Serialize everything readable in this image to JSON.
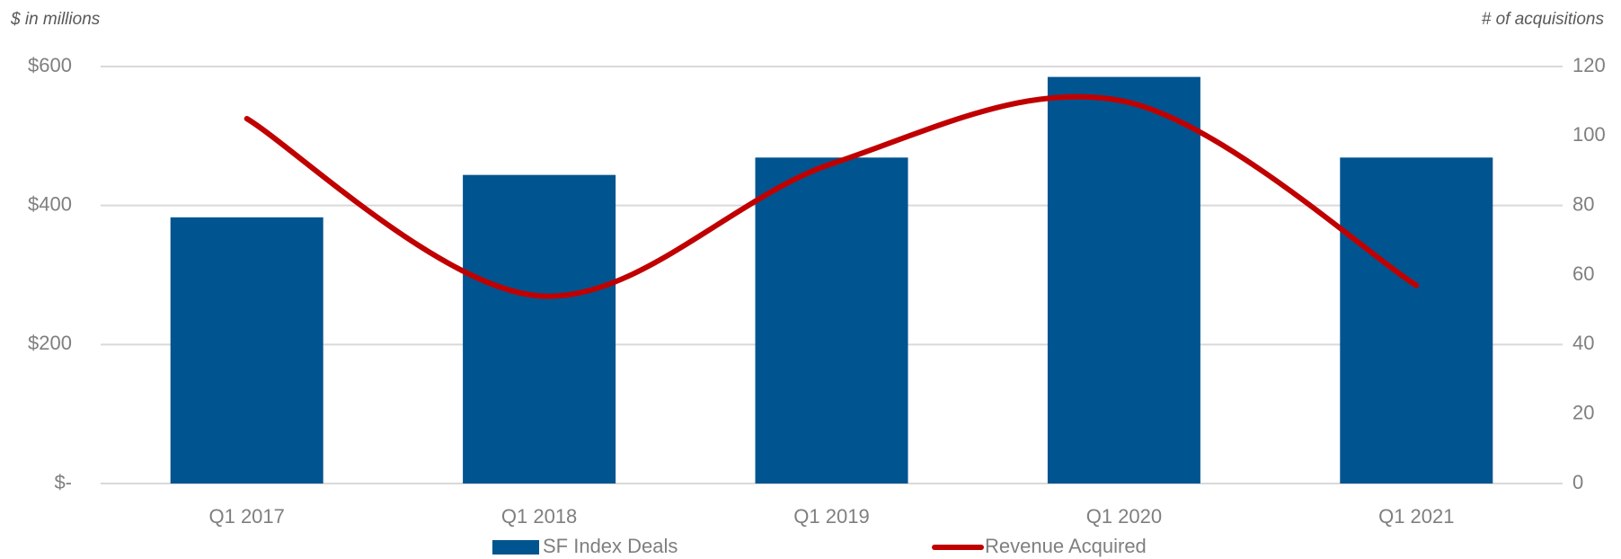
{
  "chart_data": {
    "type": "bar_line",
    "y_axis_label": "$ in millions",
    "y2_axis_label": "# of acquisitions",
    "categories": [
      "Q1 2017",
      "Q1 2018",
      "Q1 2019",
      "Q1 2020",
      "Q1 2021"
    ],
    "series": [
      {
        "name": "SF Index Deals",
        "type": "bar",
        "color": "#00548f",
        "values": [
          383,
          444,
          469,
          585,
          469
        ]
      },
      {
        "name": "Revenue Acquired",
        "type": "line",
        "color": "#c00000",
        "axis": "y2",
        "smooth": true,
        "values": [
          105,
          54,
          92,
          110,
          57
        ]
      }
    ],
    "ylim": [
      0,
      600
    ],
    "yticks": [
      {
        "value": 0,
        "label": "$-"
      },
      {
        "value": 200,
        "label": "$200"
      },
      {
        "value": 400,
        "label": "$400"
      },
      {
        "value": 600,
        "label": "$600"
      }
    ],
    "y2lim": [
      0,
      120
    ],
    "y2ticks": [
      0,
      20,
      40,
      60,
      80,
      100,
      120
    ],
    "grid": true,
    "legend": "bottom"
  }
}
